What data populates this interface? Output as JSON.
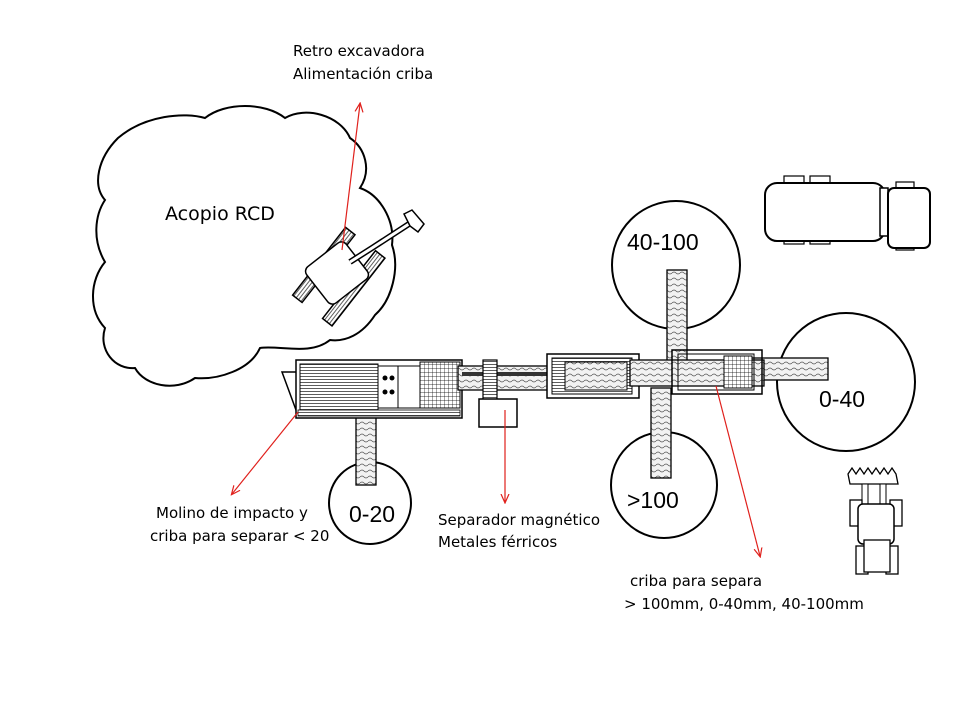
{
  "labels": {
    "stockpile": "Acopio RCD",
    "excavator_line1": "Retro excavadora",
    "excavator_line2": "Alimentación criba",
    "crusher_line1": "Molino de impacto y",
    "crusher_line2": "criba para separar < 20",
    "magnetic_line1": "Separador magnético",
    "magnetic_line2": "Metales férricos",
    "screen_line1": "criba para separa",
    "screen_line2": "> 100mm, 0-40mm, 40-100mm"
  },
  "piles": {
    "p_0_20": "0-20",
    "p_40_100": "40-100",
    "p_0_40": "0-40",
    "p_gt_100": ">100"
  },
  "colors": {
    "arrow": "#e0201c",
    "stroke": "#000000",
    "belt_fill": "#e9e9e9"
  }
}
